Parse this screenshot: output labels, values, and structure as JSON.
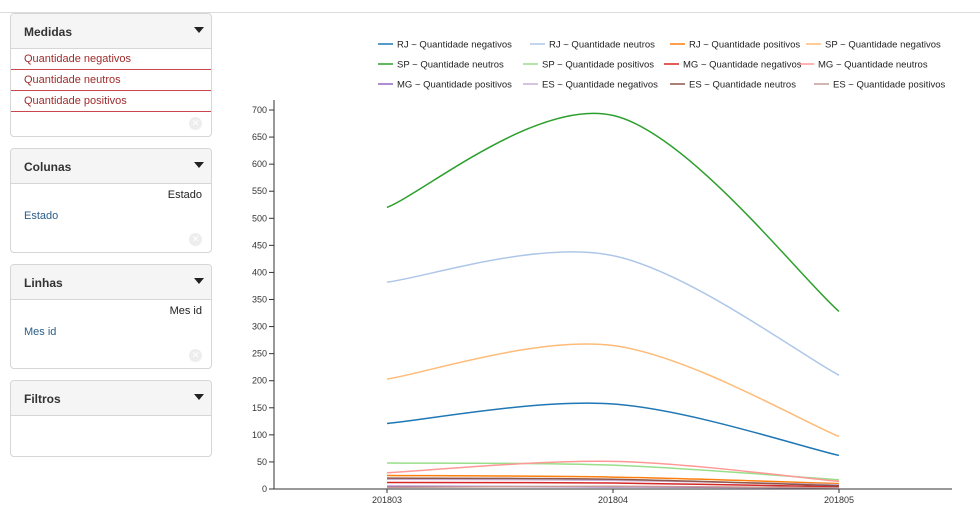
{
  "sidebar": {
    "medidas": {
      "title": "Medidas",
      "items": [
        "Quantidade negativos",
        "Quantidade neutros",
        "Quantidade positivos"
      ]
    },
    "colunas": {
      "title": "Colunas",
      "field_label": "Estado",
      "item": "Estado"
    },
    "linhas": {
      "title": "Linhas",
      "field_label": "Mes id",
      "item": "Mes id"
    },
    "filtros": {
      "title": "Filtros"
    }
  },
  "chart_data": {
    "type": "line",
    "categories": [
      "201803",
      "201804",
      "201805"
    ],
    "ylim": [
      0,
      700
    ],
    "yticks": [
      0,
      50,
      100,
      150,
      200,
      250,
      300,
      350,
      400,
      450,
      500,
      550,
      600,
      650,
      700
    ],
    "grid": false,
    "legend_position": "top",
    "series": [
      {
        "name": "RJ ~ Quantidade negativos",
        "color": "#1f77b4",
        "values": [
          121,
          157,
          62
        ]
      },
      {
        "name": "RJ ~ Quantidade neutros",
        "color": "#aec7e8",
        "values": [
          382,
          431,
          210
        ]
      },
      {
        "name": "RJ ~ Quantidade positivos",
        "color": "#ff7f0e",
        "values": [
          25,
          22,
          10
        ]
      },
      {
        "name": "SP ~ Quantidade negativos",
        "color": "#ffbb78",
        "values": [
          203,
          265,
          97
        ]
      },
      {
        "name": "SP ~ Quantidade neutros",
        "color": "#2ca02c",
        "values": [
          520,
          690,
          328
        ]
      },
      {
        "name": "SP ~ Quantidade positivos",
        "color": "#98df8a",
        "values": [
          48,
          44,
          17
        ]
      },
      {
        "name": "MG ~ Quantidade negativos",
        "color": "#d62728",
        "values": [
          12,
          11,
          4
        ]
      },
      {
        "name": "MG ~ Quantidade neutros",
        "color": "#ff9896",
        "values": [
          30,
          51,
          14
        ]
      },
      {
        "name": "MG ~ Quantidade positivos",
        "color": "#9467bd",
        "values": [
          5,
          4,
          2
        ]
      },
      {
        "name": "ES ~ Quantidade negativos",
        "color": "#c5b0d5",
        "values": [
          18,
          16,
          8
        ]
      },
      {
        "name": "ES ~ Quantidade neutros",
        "color": "#8c564b",
        "values": [
          20,
          18,
          6
        ]
      },
      {
        "name": "ES ~ Quantidade positivos",
        "color": "#c49c94",
        "values": [
          3,
          5,
          2
        ]
      }
    ]
  }
}
